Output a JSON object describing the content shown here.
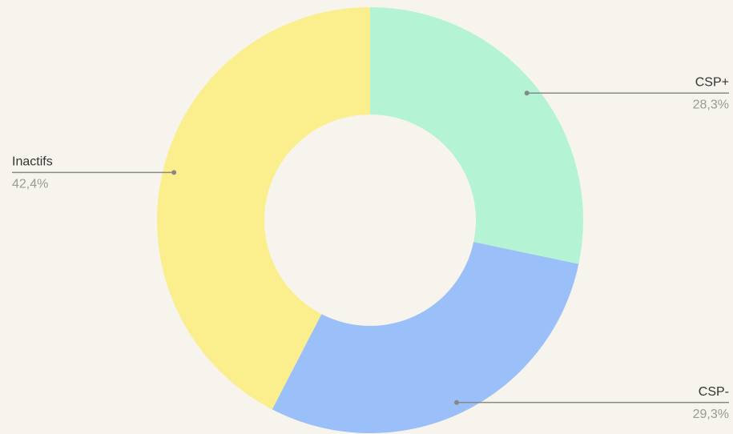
{
  "chart_data": {
    "type": "donut",
    "categories": [
      "CSP+",
      "CSP-",
      "Inactifs"
    ],
    "values": [
      28.3,
      29.3,
      42.4
    ],
    "value_labels": [
      "28,3%",
      "29,3%",
      "42,4%"
    ],
    "colors": [
      "#b4f3d4",
      "#9bbff8",
      "#fbee8d"
    ]
  }
}
